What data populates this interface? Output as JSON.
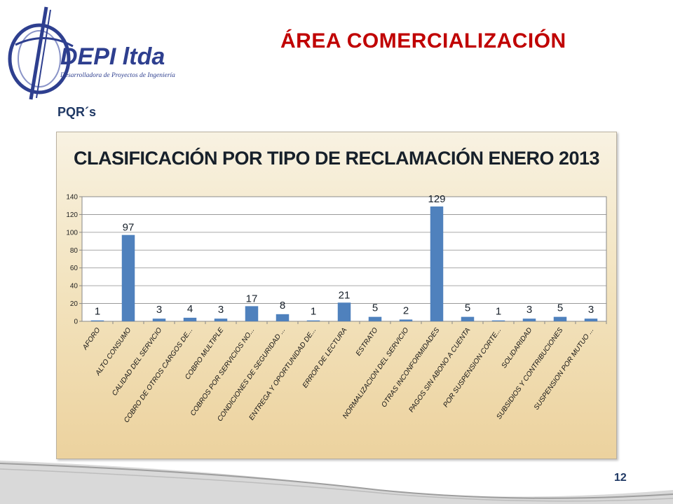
{
  "slide": {
    "title": "ÁREA COMERCIALIZACIÓN",
    "section": "PQR´s",
    "page_number": "12"
  },
  "logo": {
    "brand": "DEPI ltda",
    "tagline": "Desarrolladora de Proyectos de Ingeniería",
    "icon": "depi-logo-icon"
  },
  "colors": {
    "title": "#c00000",
    "bar": "#4f81bd",
    "logo_blue": "#2e3f8f"
  },
  "chart_data": {
    "type": "bar",
    "title": "CLASIFICACIÓN POR TIPO DE RECLAMACIÓN ENERO 2013",
    "xlabel": "",
    "ylabel": "",
    "ylim": [
      0,
      140
    ],
    "yticks": [
      0,
      20,
      40,
      60,
      80,
      100,
      120,
      140
    ],
    "grid": true,
    "legend": "none",
    "categories": [
      "AFORO",
      "ALTO CONSUMO",
      "CALIDAD DEL SERVICIO",
      "COBRO DE OTROS CARGOS DE...",
      "COBRO MULTIPLE",
      "COBROS POR SERVICIOS NO...",
      "CONDICIONES DE SEGURIDAD ...",
      "ENTREGA Y OPORTUNIDAD DE...",
      "ERROR DE LECTURA",
      "ESTRATO",
      "NORMALIZACION DEL SERVICIO",
      "OTRAS INCONFORMIDADES",
      "PAGOS SIN ABONO A CUENTA",
      "POR SUSPENSION CORTE...",
      "SOLIDARIDAD",
      "SUBSIDIOS Y CONTRIBUCIONES",
      "SUSPENSION POR MUTUO ..."
    ],
    "values": [
      1,
      97,
      3,
      4,
      3,
      17,
      8,
      1,
      21,
      5,
      2,
      129,
      5,
      1,
      3,
      5,
      3
    ]
  }
}
